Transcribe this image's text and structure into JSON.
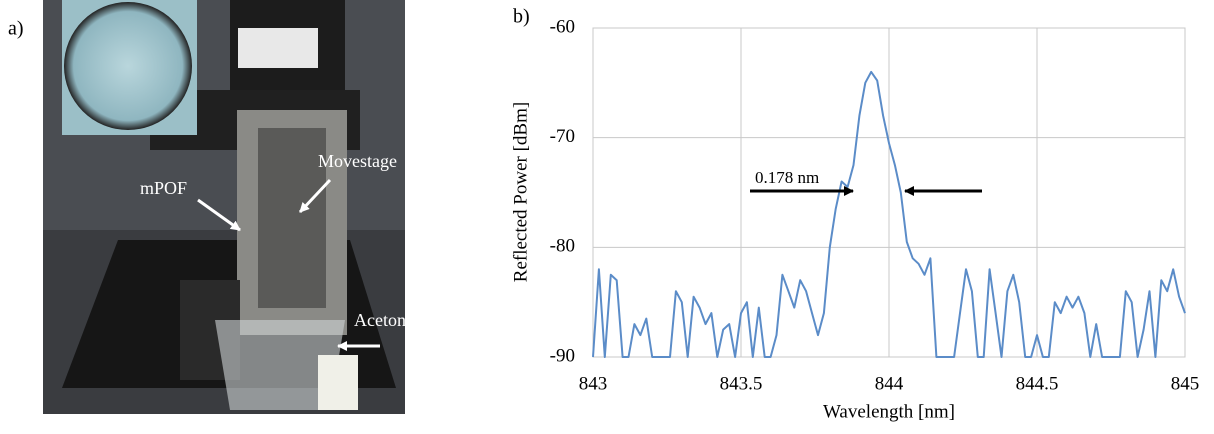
{
  "photo": {
    "panel_label": "a)",
    "labels": [
      "mPOF",
      "Movestage",
      "Acetone"
    ]
  },
  "chart_data": {
    "type": "line",
    "panel_label": "b)",
    "annotation": "0.178 nm",
    "xlabel": "Wavelength [nm]",
    "ylabel": "Reflected Power [dBm]",
    "color": "#5b8cc8",
    "grid": true,
    "xlim": [
      843,
      845
    ],
    "xticks": [
      843,
      843.5,
      844,
      844.5,
      845
    ],
    "ylim": [
      -90,
      -60
    ],
    "yticks": [
      -60,
      -70,
      -80,
      -90
    ],
    "x": [
      843.0,
      843.02,
      843.04,
      843.06,
      843.08,
      843.1,
      843.12,
      843.14,
      843.16,
      843.18,
      843.2,
      843.22,
      843.24,
      843.26,
      843.28,
      843.3,
      843.32,
      843.34,
      843.36,
      843.38,
      843.4,
      843.42,
      843.44,
      843.46,
      843.48,
      843.5,
      843.52,
      843.54,
      843.56,
      843.58,
      843.6,
      843.62,
      843.64,
      843.66,
      843.68,
      843.7,
      843.72,
      843.74,
      843.76,
      843.78,
      843.8,
      843.82,
      843.84,
      843.86,
      843.88,
      843.9,
      843.92,
      843.94,
      843.96,
      843.98,
      844.0,
      844.02,
      844.04,
      844.06,
      844.08,
      844.1,
      844.12,
      844.14,
      844.16,
      844.18,
      844.2,
      844.22,
      844.24,
      844.26,
      844.28,
      844.3,
      844.32,
      844.34,
      844.36,
      844.38,
      844.4,
      844.42,
      844.44,
      844.46,
      844.48,
      844.5,
      844.52,
      844.54,
      844.56,
      844.58,
      844.6,
      844.62,
      844.64,
      844.66,
      844.68,
      844.7,
      844.72,
      844.74,
      844.76,
      844.78,
      844.8,
      844.82,
      844.84,
      844.86,
      844.88,
      844.9,
      844.92,
      844.94,
      844.96,
      844.98,
      845.0
    ],
    "values": [
      -90,
      -82,
      -90,
      -82.5,
      -83,
      -90,
      -90,
      -87,
      -88,
      -86.5,
      -90,
      -90,
      -90,
      -90,
      -84,
      -85,
      -90,
      -84.5,
      -85.5,
      -87,
      -86,
      -90,
      -87.5,
      -87,
      -90,
      -86,
      -85,
      -90,
      -85.5,
      -90,
      -90,
      -88,
      -82.5,
      -84,
      -85.5,
      -83,
      -84,
      -86,
      -88,
      -86,
      -80,
      -76.5,
      -74,
      -74.5,
      -72.5,
      -68,
      -65,
      -64,
      -64.8,
      -68,
      -70.5,
      -72.5,
      -75,
      -79.5,
      -81,
      -81.5,
      -82.5,
      -81,
      -90,
      -90,
      -90,
      -90,
      -86,
      -82,
      -84,
      -90,
      -90,
      -82,
      -86,
      -90,
      -84,
      -82.5,
      -85,
      -90,
      -90,
      -88,
      -90,
      -90,
      -85,
      -86,
      -84.5,
      -85.5,
      -84.5,
      -86,
      -90,
      -87,
      -90,
      -90,
      -90,
      -90,
      -84,
      -85,
      -90,
      -87.5,
      -84,
      -90,
      -83,
      -84,
      -82,
      -84.5,
      -86
    ]
  }
}
